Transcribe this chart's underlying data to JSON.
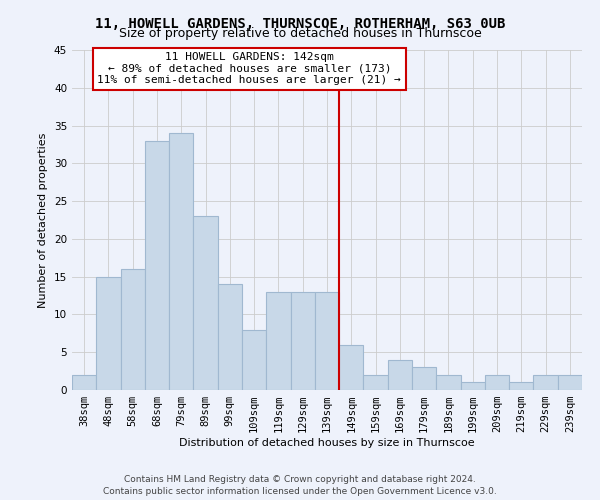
{
  "title": "11, HOWELL GARDENS, THURNSCOE, ROTHERHAM, S63 0UB",
  "subtitle": "Size of property relative to detached houses in Thurnscoe",
  "xlabel": "Distribution of detached houses by size in Thurnscoe",
  "ylabel": "Number of detached properties",
  "bins": [
    "38sqm",
    "48sqm",
    "58sqm",
    "68sqm",
    "79sqm",
    "89sqm",
    "99sqm",
    "109sqm",
    "119sqm",
    "129sqm",
    "139sqm",
    "149sqm",
    "159sqm",
    "169sqm",
    "179sqm",
    "189sqm",
    "199sqm",
    "209sqm",
    "219sqm",
    "229sqm",
    "239sqm"
  ],
  "values": [
    2,
    15,
    16,
    33,
    34,
    23,
    14,
    8,
    13,
    13,
    13,
    6,
    2,
    4,
    3,
    2,
    1,
    2,
    1,
    2,
    2
  ],
  "bar_color": "#c8d8e8",
  "bar_edge_color": "#a0b8d0",
  "ylim": [
    0,
    45
  ],
  "yticks": [
    0,
    5,
    10,
    15,
    20,
    25,
    30,
    35,
    40,
    45
  ],
  "property_label": "11 HOWELL GARDENS: 142sqm",
  "annotation_line1": "← 89% of detached houses are smaller (173)",
  "annotation_line2": "11% of semi-detached houses are larger (21) →",
  "red_line_color": "#cc0000",
  "annotation_box_color": "#ffffff",
  "annotation_border_color": "#cc0000",
  "background_color": "#eef2fb",
  "grid_color": "#cccccc",
  "footer_line1": "Contains HM Land Registry data © Crown copyright and database right 2024.",
  "footer_line2": "Contains public sector information licensed under the Open Government Licence v3.0.",
  "title_fontsize": 10,
  "subtitle_fontsize": 9,
  "axis_label_fontsize": 8,
  "tick_fontsize": 7.5,
  "annotation_fontsize": 8,
  "footer_fontsize": 6.5
}
